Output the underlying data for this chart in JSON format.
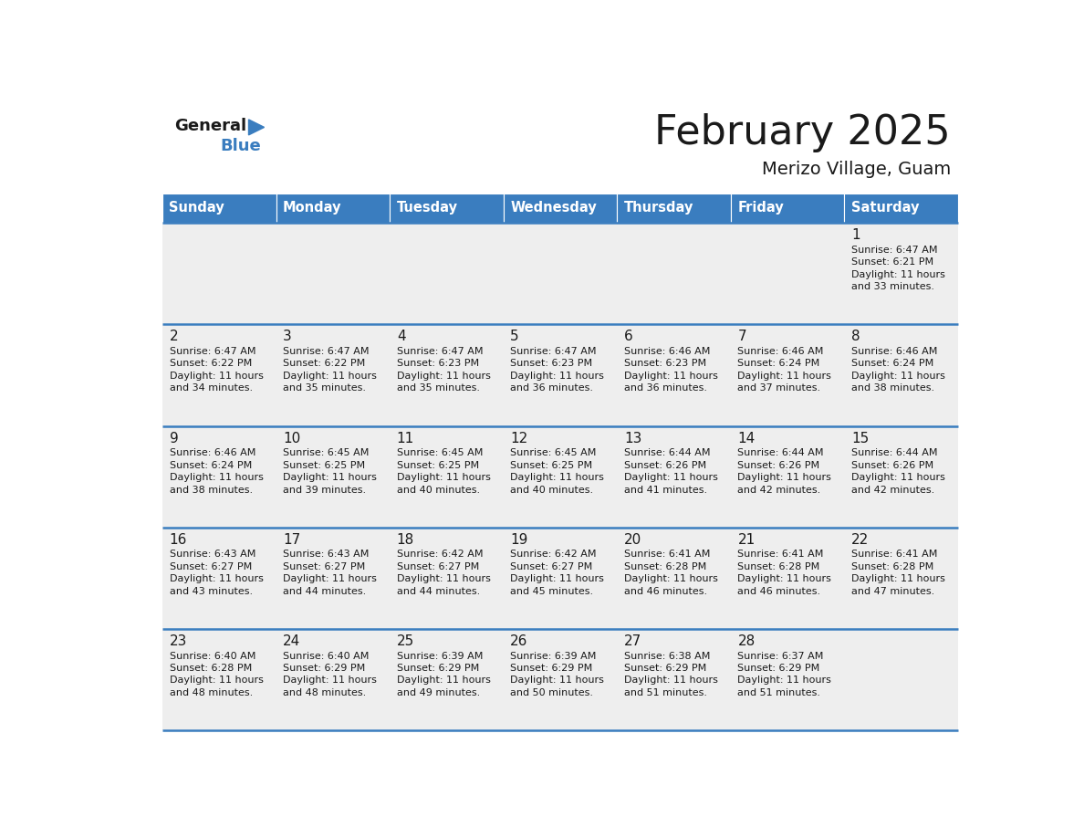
{
  "title": "February 2025",
  "subtitle": "Merizo Village, Guam",
  "header_bg_color": "#3a7dbf",
  "header_text_color": "#ffffff",
  "title_color": "#1a1a1a",
  "subtitle_color": "#1a1a1a",
  "day_names": [
    "Sunday",
    "Monday",
    "Tuesday",
    "Wednesday",
    "Thursday",
    "Friday",
    "Saturday"
  ],
  "cell_bg_color": "#eeeeee",
  "cell_border_color": "#3a7dbf",
  "day_number_color": "#1a1a1a",
  "info_text_color": "#1a1a1a",
  "background_color": "#ffffff",
  "weeks": [
    [
      null,
      null,
      null,
      null,
      null,
      null,
      1
    ],
    [
      2,
      3,
      4,
      5,
      6,
      7,
      8
    ],
    [
      9,
      10,
      11,
      12,
      13,
      14,
      15
    ],
    [
      16,
      17,
      18,
      19,
      20,
      21,
      22
    ],
    [
      23,
      24,
      25,
      26,
      27,
      28,
      null
    ]
  ],
  "day_data": {
    "1": {
      "sunrise": "6:47 AM",
      "sunset": "6:21 PM",
      "daylight": "11 hours and 33 minutes"
    },
    "2": {
      "sunrise": "6:47 AM",
      "sunset": "6:22 PM",
      "daylight": "11 hours and 34 minutes"
    },
    "3": {
      "sunrise": "6:47 AM",
      "sunset": "6:22 PM",
      "daylight": "11 hours and 35 minutes"
    },
    "4": {
      "sunrise": "6:47 AM",
      "sunset": "6:23 PM",
      "daylight": "11 hours and 35 minutes"
    },
    "5": {
      "sunrise": "6:47 AM",
      "sunset": "6:23 PM",
      "daylight": "11 hours and 36 minutes"
    },
    "6": {
      "sunrise": "6:46 AM",
      "sunset": "6:23 PM",
      "daylight": "11 hours and 36 minutes"
    },
    "7": {
      "sunrise": "6:46 AM",
      "sunset": "6:24 PM",
      "daylight": "11 hours and 37 minutes"
    },
    "8": {
      "sunrise": "6:46 AM",
      "sunset": "6:24 PM",
      "daylight": "11 hours and 38 minutes"
    },
    "9": {
      "sunrise": "6:46 AM",
      "sunset": "6:24 PM",
      "daylight": "11 hours and 38 minutes"
    },
    "10": {
      "sunrise": "6:45 AM",
      "sunset": "6:25 PM",
      "daylight": "11 hours and 39 minutes"
    },
    "11": {
      "sunrise": "6:45 AM",
      "sunset": "6:25 PM",
      "daylight": "11 hours and 40 minutes"
    },
    "12": {
      "sunrise": "6:45 AM",
      "sunset": "6:25 PM",
      "daylight": "11 hours and 40 minutes"
    },
    "13": {
      "sunrise": "6:44 AM",
      "sunset": "6:26 PM",
      "daylight": "11 hours and 41 minutes"
    },
    "14": {
      "sunrise": "6:44 AM",
      "sunset": "6:26 PM",
      "daylight": "11 hours and 42 minutes"
    },
    "15": {
      "sunrise": "6:44 AM",
      "sunset": "6:26 PM",
      "daylight": "11 hours and 42 minutes"
    },
    "16": {
      "sunrise": "6:43 AM",
      "sunset": "6:27 PM",
      "daylight": "11 hours and 43 minutes"
    },
    "17": {
      "sunrise": "6:43 AM",
      "sunset": "6:27 PM",
      "daylight": "11 hours and 44 minutes"
    },
    "18": {
      "sunrise": "6:42 AM",
      "sunset": "6:27 PM",
      "daylight": "11 hours and 44 minutes"
    },
    "19": {
      "sunrise": "6:42 AM",
      "sunset": "6:27 PM",
      "daylight": "11 hours and 45 minutes"
    },
    "20": {
      "sunrise": "6:41 AM",
      "sunset": "6:28 PM",
      "daylight": "11 hours and 46 minutes"
    },
    "21": {
      "sunrise": "6:41 AM",
      "sunset": "6:28 PM",
      "daylight": "11 hours and 46 minutes"
    },
    "22": {
      "sunrise": "6:41 AM",
      "sunset": "6:28 PM",
      "daylight": "11 hours and 47 minutes"
    },
    "23": {
      "sunrise": "6:40 AM",
      "sunset": "6:28 PM",
      "daylight": "11 hours and 48 minutes"
    },
    "24": {
      "sunrise": "6:40 AM",
      "sunset": "6:29 PM",
      "daylight": "11 hours and 48 minutes"
    },
    "25": {
      "sunrise": "6:39 AM",
      "sunset": "6:29 PM",
      "daylight": "11 hours and 49 minutes"
    },
    "26": {
      "sunrise": "6:39 AM",
      "sunset": "6:29 PM",
      "daylight": "11 hours and 50 minutes"
    },
    "27": {
      "sunrise": "6:38 AM",
      "sunset": "6:29 PM",
      "daylight": "11 hours and 51 minutes"
    },
    "28": {
      "sunrise": "6:37 AM",
      "sunset": "6:29 PM",
      "daylight": "11 hours and 51 minutes"
    }
  },
  "logo_general_color": "#1a1a1a",
  "logo_blue_color": "#3a7dbf",
  "logo_triangle_color": "#3a7dbf"
}
